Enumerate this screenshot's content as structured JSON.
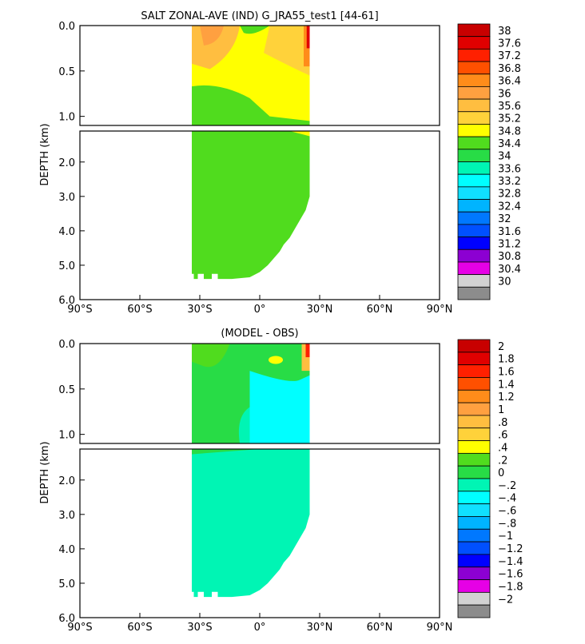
{
  "figure": {
    "title": "SALT ZONAL-AVE (IND) G_JRA55_test1 [44-61]",
    "ylabel": "DEPTH (km)"
  },
  "chart_data": [
    {
      "type": "heatmap",
      "title": "SALT ZONAL-AVE (IND) G_JRA55_test1 [44-61]",
      "ylabel": "DEPTH (km)",
      "x_ticks": [
        "90°S",
        "60°S",
        "30°S",
        "0°",
        "30°N",
        "60°N",
        "90°N"
      ],
      "y_ticks_upper": [
        "0.0",
        "0.5",
        "1.0"
      ],
      "y_ticks_lower": [
        "2.0",
        "3.0",
        "4.0",
        "5.0",
        "6.0"
      ],
      "xlim": [
        -90,
        90
      ],
      "ylim_upper_km": [
        0,
        1.1
      ],
      "ylim_lower_km": [
        1.1,
        6.0
      ],
      "colorbar": {
        "levels": [
          "38",
          "37.6",
          "37.2",
          "36.8",
          "36.4",
          "36",
          "35.6",
          "35.2",
          "34.8",
          "34.4",
          "34",
          "33.6",
          "33.2",
          "32.8",
          "32.4",
          "32",
          "31.6",
          "31.2",
          "30.8",
          "30.4",
          "30"
        ],
        "colors": [
          "#c80000",
          "#e00000",
          "#ff2000",
          "#ff5000",
          "#ff8c1a",
          "#ffa040",
          "#ffbe40",
          "#ffd23a",
          "#ffff00",
          "#50dc1e",
          "#28dc46",
          "#00f5b4",
          "#00ffff",
          "#10e0ff",
          "#00b4ff",
          "#0078ff",
          "#0050ff",
          "#0000ff",
          "#8c00d2",
          "#e600e6",
          "#d2d2d2",
          "#8c8c8c"
        ]
      },
      "fill_regions": [
        {
          "value_band": "34.4-34.8",
          "color": "#50dc1e",
          "description_region": "lower"
        },
        {
          "value_band": "34.8-35.2",
          "color": "#ffff00",
          "description_region": "upper"
        },
        {
          "value_band": "35.2-35.6",
          "color": "#ffd23a",
          "description_region": "upper-north"
        },
        {
          "value_band": "35.6-36.0",
          "color": "#ffa040",
          "description_region": "upper-south"
        }
      ]
    },
    {
      "type": "heatmap",
      "title": "(MODEL - OBS)",
      "ylabel": "DEPTH (km)",
      "x_ticks": [
        "90°S",
        "60°S",
        "30°S",
        "0°",
        "30°N",
        "60°N",
        "90°N"
      ],
      "y_ticks_upper": [
        "0.0",
        "0.5",
        "1.0"
      ],
      "y_ticks_lower": [
        "2.0",
        "3.0",
        "4.0",
        "5.0",
        "6.0"
      ],
      "xlim": [
        -90,
        90
      ],
      "ylim_upper_km": [
        0,
        1.1
      ],
      "ylim_lower_km": [
        1.1,
        6.0
      ],
      "colorbar": {
        "levels": [
          "2",
          "1.8",
          "1.6",
          "1.4",
          "1.2",
          "1",
          ".8",
          ".6",
          ".4",
          ".2",
          "0",
          "−.2",
          "−.4",
          "−.6",
          "−.8",
          "−1",
          "−1.2",
          "−1.4",
          "−1.6",
          "−1.8",
          "−2"
        ],
        "colors": [
          "#c80000",
          "#e00000",
          "#ff2000",
          "#ff5000",
          "#ff8c1a",
          "#ffa040",
          "#ffbe40",
          "#ffd23a",
          "#ffff00",
          "#50dc1e",
          "#28dc46",
          "#00f5b4",
          "#00ffff",
          "#10e0ff",
          "#00b4ff",
          "#0078ff",
          "#0050ff",
          "#0000ff",
          "#8c00d2",
          "#e600e6",
          "#d2d2d2",
          "#8c8c8c"
        ]
      },
      "fill_regions": [
        {
          "value_band": "0-0.2",
          "color": "#28dc46",
          "description_region": "upper"
        },
        {
          "value_band": "-0.2-0",
          "color": "#00f5b4",
          "description_region": "lower"
        },
        {
          "value_band": "-0.4--0.2",
          "color": "#00ffff",
          "description_region": "upper-north"
        },
        {
          "value_band": "0.2-0.4",
          "color": "#50dc1e",
          "description_region": "upper-mid"
        }
      ]
    }
  ]
}
